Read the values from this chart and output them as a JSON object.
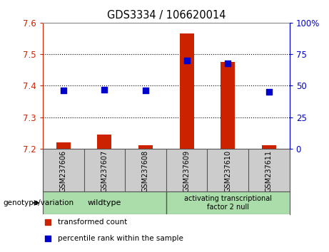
{
  "title": "GDS3334 / 106620014",
  "samples": [
    "GSM237606",
    "GSM237607",
    "GSM237608",
    "GSM237609",
    "GSM237610",
    "GSM237611"
  ],
  "transformed_count": [
    7.22,
    7.245,
    7.21,
    7.565,
    7.475,
    7.21
  ],
  "percentile_rank": [
    46,
    47,
    46,
    70,
    68,
    45
  ],
  "ylim_left": [
    7.2,
    7.6
  ],
  "ylim_right": [
    0,
    100
  ],
  "yticks_left": [
    7.2,
    7.3,
    7.4,
    7.5,
    7.6
  ],
  "yticks_right": [
    0,
    25,
    50,
    75,
    100
  ],
  "group_wildtype_label": "wildtype",
  "group_atf2_label": "activating transcriptional\nfactor 2 null",
  "group_color": "#aaddaa",
  "bar_color": "#cc2200",
  "dot_color": "#0000cc",
  "bar_width": 0.35,
  "dot_size": 40,
  "background_plot": "#ffffff",
  "left_axis_color": "#cc2200",
  "right_axis_color": "#0000cc",
  "legend_red": "transformed count",
  "legend_blue": "percentile rank within the sample",
  "xlabel_label": "genotype/variation",
  "sample_bg_color": "#cccccc",
  "grid_yticks": [
    7.3,
    7.4,
    7.5
  ]
}
